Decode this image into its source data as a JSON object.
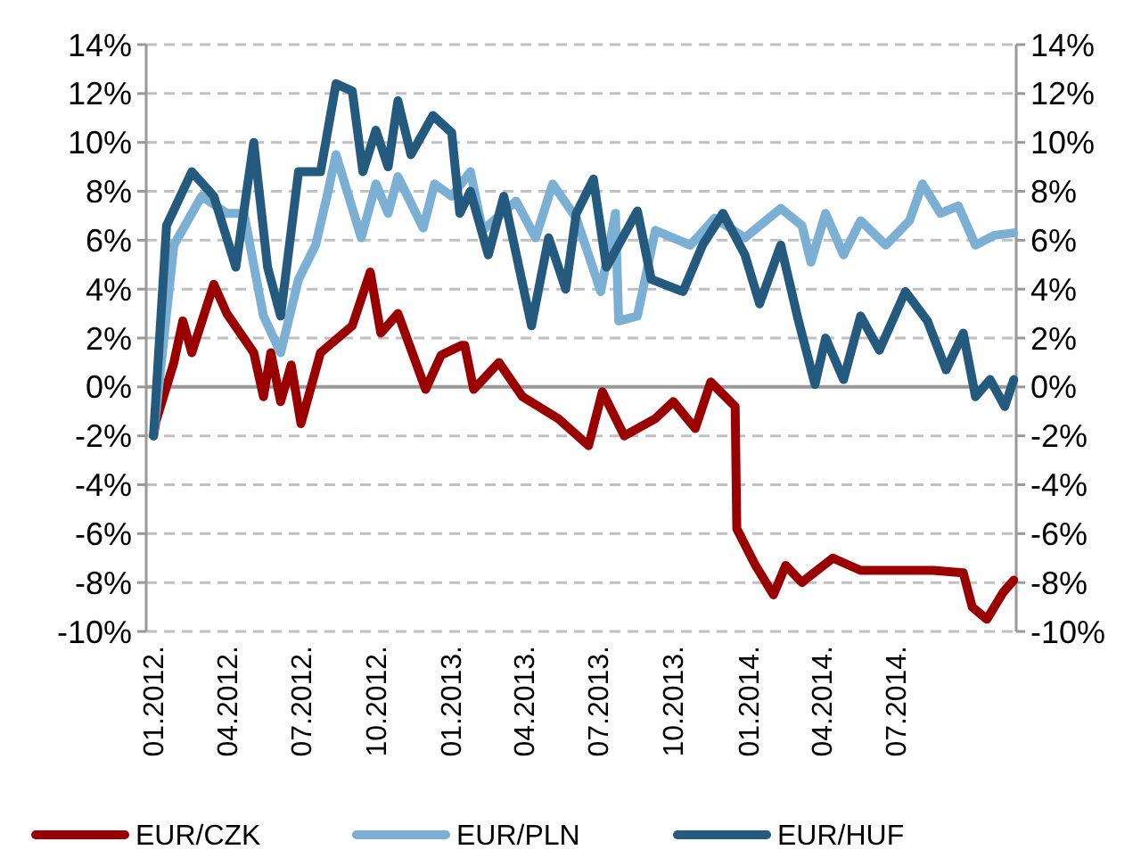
{
  "chart_data": {
    "type": "line",
    "xlim": [
      "2011-12-24",
      "2014-11-26"
    ],
    "xticks": [
      {
        "value": "2012-01-01",
        "label": "01.2012."
      },
      {
        "value": "2012-04-01",
        "label": "04.2012."
      },
      {
        "value": "2012-07-01",
        "label": "07.2012."
      },
      {
        "value": "2012-10-01",
        "label": "10.2012."
      },
      {
        "value": "2013-01-01",
        "label": "01.2013."
      },
      {
        "value": "2013-04-01",
        "label": "04.2013."
      },
      {
        "value": "2013-07-01",
        "label": "07.2013."
      },
      {
        "value": "2013-10-01",
        "label": "10.2013."
      },
      {
        "value": "2014-01-01",
        "label": "01.2014."
      },
      {
        "value": "2014-04-01",
        "label": "04.2014."
      },
      {
        "value": "2014-07-01",
        "label": "07.2014."
      }
    ],
    "ylim": [
      -10,
      14
    ],
    "yticks": [
      {
        "value": -10,
        "label": "-10%"
      },
      {
        "value": -8,
        "label": "-8%"
      },
      {
        "value": -6,
        "label": "-6%"
      },
      {
        "value": -4,
        "label": "-4%"
      },
      {
        "value": -2,
        "label": "-2%"
      },
      {
        "value": 0,
        "label": "0%"
      },
      {
        "value": 2,
        "label": "2%"
      },
      {
        "value": 4,
        "label": "4%"
      },
      {
        "value": 6,
        "label": "6%"
      },
      {
        "value": 8,
        "label": "8%"
      },
      {
        "value": 10,
        "label": "10%"
      },
      {
        "value": 12,
        "label": "12%"
      },
      {
        "value": 14,
        "label": "14%"
      }
    ],
    "y2lim": [
      -10,
      14
    ],
    "y2ticks": [
      {
        "value": -10,
        "label": "-10%"
      },
      {
        "value": -8,
        "label": "-8%"
      },
      {
        "value": -6,
        "label": "-6%"
      },
      {
        "value": -4,
        "label": "-4%"
      },
      {
        "value": -2,
        "label": "-2%"
      },
      {
        "value": 0,
        "label": "0%"
      },
      {
        "value": 2,
        "label": "2%"
      },
      {
        "value": 4,
        "label": "4%"
      },
      {
        "value": 6,
        "label": "6%"
      },
      {
        "value": 8,
        "label": "8%"
      },
      {
        "value": 10,
        "label": "10%"
      },
      {
        "value": 12,
        "label": "12%"
      },
      {
        "value": 14,
        "label": "14%"
      }
    ],
    "grid": "y",
    "legend": "bottom",
    "marker": "none",
    "line_style": "solid",
    "series": [
      {
        "name": "EUR/CZK",
        "color": "#9b0000",
        "x": [
          "2012-01-02",
          "2012-01-05",
          "2012-01-27",
          "2012-02-07",
          "2012-02-18",
          "2012-03-16",
          "2012-04-01",
          "2012-05-04",
          "2012-05-16",
          "2012-05-25",
          "2012-06-06",
          "2012-06-19",
          "2012-07-01",
          "2012-07-25",
          "2012-09-02",
          "2012-09-24",
          "2012-10-07",
          "2012-10-28",
          "2012-12-01",
          "2012-12-20",
          "2013-01-14",
          "2013-01-18",
          "2013-01-29",
          "2013-03-01",
          "2013-03-30",
          "2013-05-13",
          "2013-06-19",
          "2013-07-06",
          "2013-08-02",
          "2013-09-09",
          "2013-10-01",
          "2013-10-28",
          "2013-11-16",
          "2013-12-16",
          "2013-12-18",
          "2014-01-10",
          "2014-02-01",
          "2014-02-16",
          "2014-03-08",
          "2014-03-15",
          "2014-04-15",
          "2014-05-19",
          "2014-07-02",
          "2014-08-16",
          "2014-09-22",
          "2014-10-03",
          "2014-10-21",
          "2014-11-10",
          "2014-11-23"
        ],
        "values": [
          -2,
          -1.4,
          1.0,
          2.7,
          1.4,
          4.2,
          3.0,
          1.4,
          -0.4,
          1.4,
          -0.6,
          0.9,
          -1.5,
          1.4,
          2.5,
          4.7,
          2.2,
          3.0,
          -0.1,
          1.3,
          1.7,
          1.7,
          -0.1,
          1.0,
          -0.4,
          -1.3,
          -2.4,
          -0.2,
          -2.0,
          -1.3,
          -0.6,
          -1.7,
          0.2,
          -0.8,
          -5.8,
          -7.3,
          -8.5,
          -7.3,
          -8.0,
          -7.8,
          -7.0,
          -7.5,
          -7.5,
          -7.5,
          -7.6,
          -9.0,
          -9.5,
          -8.4,
          -7.9
        ]
      },
      {
        "name": "EUR/PLN",
        "color": "#7bafd4",
        "x": [
          "2012-01-02",
          "2012-01-27",
          "2012-03-01",
          "2012-04-01",
          "2012-04-22",
          "2012-05-16",
          "2012-06-06",
          "2012-06-28",
          "2012-07-19",
          "2012-08-02",
          "2012-08-13",
          "2012-09-13",
          "2012-10-01",
          "2012-10-16",
          "2012-10-28",
          "2012-11-28",
          "2012-12-12",
          "2013-01-02",
          "2013-01-25",
          "2013-02-09",
          "2013-03-22",
          "2013-04-15",
          "2013-05-06",
          "2013-06-04",
          "2013-07-04",
          "2013-07-22",
          "2013-07-26",
          "2013-08-18",
          "2013-09-09",
          "2013-10-22",
          "2013-11-21",
          "2013-12-28",
          "2014-02-10",
          "2014-03-08",
          "2014-03-19",
          "2014-04-06",
          "2014-04-28",
          "2014-05-19",
          "2014-06-19",
          "2014-07-18",
          "2014-08-03",
          "2014-08-25",
          "2014-09-16",
          "2014-10-07",
          "2014-10-30",
          "2014-11-23"
        ],
        "values": [
          -2,
          5.8,
          7.8,
          7.1,
          7.1,
          2.9,
          1.4,
          4.4,
          5.8,
          7.8,
          9.5,
          6.1,
          8.3,
          7.1,
          8.6,
          6.5,
          8.3,
          7.8,
          8.8,
          6.4,
          7.6,
          6.1,
          8.3,
          6.9,
          3.9,
          7.1,
          2.7,
          2.9,
          6.4,
          5.8,
          6.9,
          6.1,
          7.3,
          6.6,
          5.1,
          7.1,
          5.4,
          6.8,
          5.8,
          6.8,
          8.3,
          7.1,
          7.4,
          5.8,
          6.2,
          6.3
        ]
      },
      {
        "name": "EUR/HUF",
        "color": "#255a7f",
        "x": [
          "2012-01-02",
          "2012-01-18",
          "2012-02-18",
          "2012-03-16",
          "2012-04-12",
          "2012-05-04",
          "2012-05-21",
          "2012-06-06",
          "2012-06-28",
          "2012-07-25",
          "2012-08-13",
          "2012-09-02",
          "2012-09-15",
          "2012-10-01",
          "2012-10-16",
          "2012-10-28",
          "2012-11-13",
          "2012-12-10",
          "2013-01-02",
          "2013-01-12",
          "2013-01-25",
          "2013-02-16",
          "2013-03-07",
          "2013-04-10",
          "2013-05-01",
          "2013-05-22",
          "2013-06-04",
          "2013-06-25",
          "2013-07-11",
          "2013-08-18",
          "2013-09-04",
          "2013-10-13",
          "2013-11-06",
          "2013-12-01",
          "2013-12-28",
          "2014-01-15",
          "2014-02-10",
          "2014-03-03",
          "2014-03-24",
          "2014-04-06",
          "2014-04-28",
          "2014-05-19",
          "2014-06-11",
          "2014-07-13",
          "2014-08-09",
          "2014-09-01",
          "2014-09-22",
          "2014-10-07",
          "2014-10-25",
          "2014-11-12",
          "2014-11-23"
        ],
        "values": [
          -2,
          6.6,
          8.8,
          7.8,
          4.9,
          10,
          4.9,
          2.9,
          8.8,
          8.8,
          12.4,
          12.1,
          8.8,
          10.5,
          9,
          11.7,
          9.5,
          11.1,
          10.4,
          7.1,
          8.0,
          5.4,
          7.8,
          2.5,
          6.1,
          4.0,
          7.1,
          8.5,
          4.9,
          7.2,
          4.4,
          3.9,
          5.8,
          7.1,
          5.4,
          3.4,
          5.8,
          2.8,
          0.1,
          2.0,
          0.3,
          2.9,
          1.5,
          3.9,
          2.7,
          0.7,
          2.2,
          -0.4,
          0.3,
          -0.8,
          0.3
        ]
      }
    ]
  }
}
